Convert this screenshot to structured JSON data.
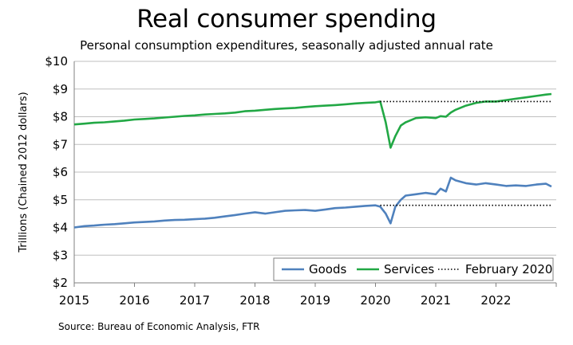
{
  "chart_data": {
    "type": "line",
    "title": "Real consumer spending",
    "subtitle": "Personal consumption expenditures, seasonally adjusted annual rate",
    "ylabel": "Trillions (Chained 2012 dollars)",
    "xlabel": "",
    "source": "Source:  Bureau of Economic Analysis, FTR",
    "xlim": [
      2015,
      2023
    ],
    "ylim": [
      2,
      10
    ],
    "xticks": [
      2015,
      2016,
      2017,
      2018,
      2019,
      2020,
      2021,
      2022
    ],
    "xtick_labels": [
      "2015",
      "2016",
      "2017",
      "2018",
      "2019",
      "2020",
      "2021",
      "2022"
    ],
    "yticks": [
      2,
      3,
      4,
      5,
      6,
      7,
      8,
      9,
      10
    ],
    "ytick_labels": [
      "$2",
      "$3",
      "$4",
      "$5",
      "$6",
      "$7",
      "$8",
      "$9",
      "$10"
    ],
    "grid": "horizontal",
    "legend_position": "bottom-right",
    "series": [
      {
        "name": "Goods",
        "color": "#4f81bd",
        "style": "solid",
        "x": [
          2015.0,
          2015.17,
          2015.33,
          2015.5,
          2015.67,
          2015.83,
          2016.0,
          2016.17,
          2016.33,
          2016.5,
          2016.67,
          2016.83,
          2017.0,
          2017.17,
          2017.33,
          2017.5,
          2017.67,
          2017.83,
          2018.0,
          2018.17,
          2018.33,
          2018.5,
          2018.67,
          2018.83,
          2019.0,
          2019.17,
          2019.33,
          2019.5,
          2019.67,
          2019.83,
          2020.0,
          2020.08,
          2020.17,
          2020.25,
          2020.33,
          2020.42,
          2020.5,
          2020.67,
          2020.83,
          2021.0,
          2021.08,
          2021.17,
          2021.25,
          2021.33,
          2021.5,
          2021.67,
          2021.83,
          2022.0,
          2022.17,
          2022.33,
          2022.5,
          2022.67,
          2022.83,
          2022.92
        ],
        "values": [
          4.0,
          4.05,
          4.07,
          4.1,
          4.12,
          4.15,
          4.18,
          4.2,
          4.22,
          4.25,
          4.27,
          4.28,
          4.3,
          4.32,
          4.35,
          4.4,
          4.45,
          4.5,
          4.55,
          4.5,
          4.55,
          4.6,
          4.62,
          4.63,
          4.6,
          4.65,
          4.7,
          4.72,
          4.75,
          4.78,
          4.8,
          4.75,
          4.5,
          4.15,
          4.75,
          5.0,
          5.15,
          5.2,
          5.25,
          5.2,
          5.4,
          5.3,
          5.8,
          5.7,
          5.6,
          5.55,
          5.6,
          5.55,
          5.5,
          5.52,
          5.5,
          5.55,
          5.58,
          5.48
        ]
      },
      {
        "name": "Services",
        "color": "#22a845",
        "style": "solid",
        "x": [
          2015.0,
          2015.17,
          2015.33,
          2015.5,
          2015.67,
          2015.83,
          2016.0,
          2016.17,
          2016.33,
          2016.5,
          2016.67,
          2016.83,
          2017.0,
          2017.17,
          2017.33,
          2017.5,
          2017.67,
          2017.83,
          2018.0,
          2018.17,
          2018.33,
          2018.5,
          2018.67,
          2018.83,
          2019.0,
          2019.17,
          2019.33,
          2019.5,
          2019.67,
          2019.83,
          2020.0,
          2020.08,
          2020.17,
          2020.25,
          2020.33,
          2020.42,
          2020.5,
          2020.67,
          2020.83,
          2021.0,
          2021.08,
          2021.17,
          2021.25,
          2021.33,
          2021.5,
          2021.67,
          2021.83,
          2022.0,
          2022.17,
          2022.33,
          2022.5,
          2022.67,
          2022.83,
          2022.92
        ],
        "values": [
          7.72,
          7.75,
          7.78,
          7.8,
          7.83,
          7.86,
          7.9,
          7.92,
          7.94,
          7.97,
          8.0,
          8.03,
          8.05,
          8.08,
          8.1,
          8.12,
          8.15,
          8.2,
          8.22,
          8.25,
          8.28,
          8.3,
          8.32,
          8.35,
          8.38,
          8.4,
          8.42,
          8.45,
          8.48,
          8.5,
          8.52,
          8.55,
          7.8,
          6.88,
          7.3,
          7.68,
          7.8,
          7.95,
          7.98,
          7.95,
          8.02,
          8.0,
          8.15,
          8.25,
          8.4,
          8.5,
          8.55,
          8.55,
          8.6,
          8.65,
          8.7,
          8.75,
          8.8,
          8.82
        ]
      },
      {
        "name": "February 2020",
        "color": "#000000",
        "style": "dotted",
        "segments": [
          {
            "x": [
              2020.08,
              2022.92
            ],
            "values": [
              8.55,
              8.55
            ]
          },
          {
            "x": [
              2020.08,
              2022.92
            ],
            "values": [
              4.8,
              4.8
            ]
          }
        ]
      }
    ]
  }
}
